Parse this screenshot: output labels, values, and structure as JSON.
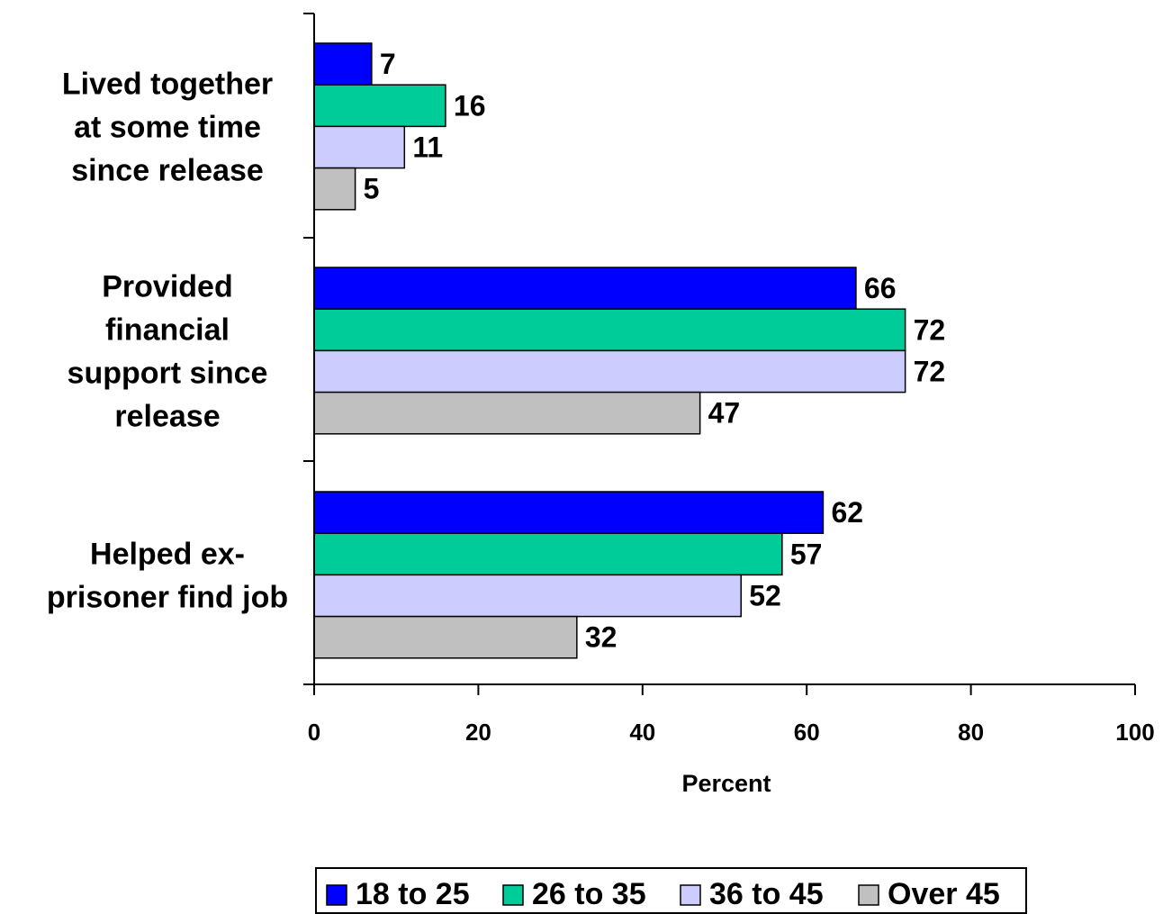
{
  "chart_data": {
    "type": "bar",
    "orientation": "horizontal",
    "categories": [
      [
        "Lived together",
        "at some time",
        "since release"
      ],
      [
        "Provided",
        "financial",
        "support since",
        "release"
      ],
      [
        "Helped ex-",
        "prisoner find job"
      ]
    ],
    "series": [
      {
        "name": "18 to 25",
        "color": "#0000ff",
        "values": [
          7,
          66,
          62
        ]
      },
      {
        "name": "26 to 35",
        "color": "#00cc99",
        "values": [
          16,
          72,
          57
        ]
      },
      {
        "name": "36 to 45",
        "color": "#ccccff",
        "values": [
          11,
          72,
          52
        ]
      },
      {
        "name": "Over 45",
        "color": "#c0c0c0",
        "values": [
          5,
          47,
          32
        ]
      }
    ],
    "xlabel": "Percent",
    "xlim": [
      0,
      100
    ],
    "xticks": [
      0,
      20,
      40,
      60,
      80,
      100
    ],
    "grid": false,
    "legend": "bottom"
  }
}
